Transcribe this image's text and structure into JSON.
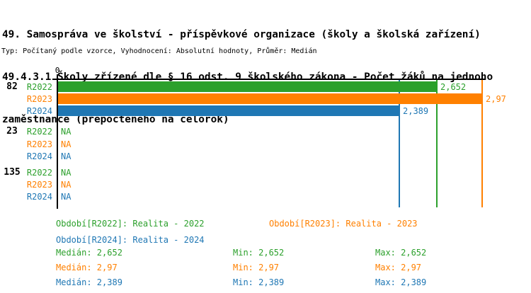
{
  "title": {
    "line1": "49. Samospráva ve školství - příspěvkové organizace (školy a školská zařízení)",
    "line2": "49.4.3.1 Školy zřízené dle § 16 odst. 9 školského zákona - Počet žáků na jednoho",
    "line3": "zaměstnance (přepočteného na celorok)",
    "subtitle": "Typ: Počítaný podle vzorce, Vyhodnocení: Absolutní hodnoty, Průměr: Medián"
  },
  "chart_data": {
    "type": "bar",
    "orientation": "horizontal",
    "value_axis": {
      "position": "top",
      "origin_tick_label": "0"
    },
    "xlim": [
      0,
      3.0
    ],
    "categories": [
      "82",
      "23",
      "135"
    ],
    "na_label": "NA",
    "series": [
      {
        "name": "R2022",
        "color": "#2ca02c",
        "values": [
          2.652,
          null,
          null
        ],
        "value_labels": [
          "2,652",
          "NA",
          "NA"
        ]
      },
      {
        "name": "R2023",
        "color": "#ff8000",
        "values": [
          2.97,
          null,
          null
        ],
        "value_labels": [
          "2,97",
          "NA",
          "NA"
        ]
      },
      {
        "name": "R2024",
        "color": "#1f77b4",
        "values": [
          2.389,
          null,
          null
        ],
        "value_labels": [
          "2,389",
          "NA",
          "NA"
        ]
      }
    ],
    "marker_lines": [
      {
        "series": "R2024",
        "value": 2.389,
        "color": "#1f77b4"
      },
      {
        "series": "R2022",
        "value": 2.652,
        "color": "#2ca02c"
      },
      {
        "series": "R2023",
        "value": 2.97,
        "color": "#ff8000"
      }
    ],
    "summary": [
      {
        "series": "R2022",
        "median": 2.652,
        "min": 2.652,
        "max": 2.652
      },
      {
        "series": "R2023",
        "median": 2.97,
        "min": 2.97,
        "max": 2.97
      },
      {
        "series": "R2024",
        "median": 2.389,
        "min": 2.389,
        "max": 2.389
      }
    ],
    "legend_position": "below"
  },
  "legend": {
    "items": [
      {
        "series": "R2022",
        "text": "Období[R2022]: Realita - 2022",
        "color": "#2ca02c"
      },
      {
        "series": "R2023",
        "text": "Období[R2023]: Realita - 2023",
        "color": "#ff8000"
      },
      {
        "series": "R2024",
        "text": "Období[R2024]: Realita - 2024",
        "color": "#1f77b4"
      }
    ]
  },
  "stats": {
    "rows": [
      {
        "series": "R2022",
        "color": "#2ca02c",
        "median": "Medián: 2,652",
        "min": "Min: 2,652",
        "max": "Max: 2,652"
      },
      {
        "series": "R2023",
        "color": "#ff8000",
        "median": "Medián: 2,97",
        "min": "Min: 2,97",
        "max": "Max: 2,97"
      },
      {
        "series": "R2024",
        "color": "#1f77b4",
        "median": "Medián: 2,389",
        "min": "Min: 2,389",
        "max": "Max: 2,389"
      }
    ]
  }
}
